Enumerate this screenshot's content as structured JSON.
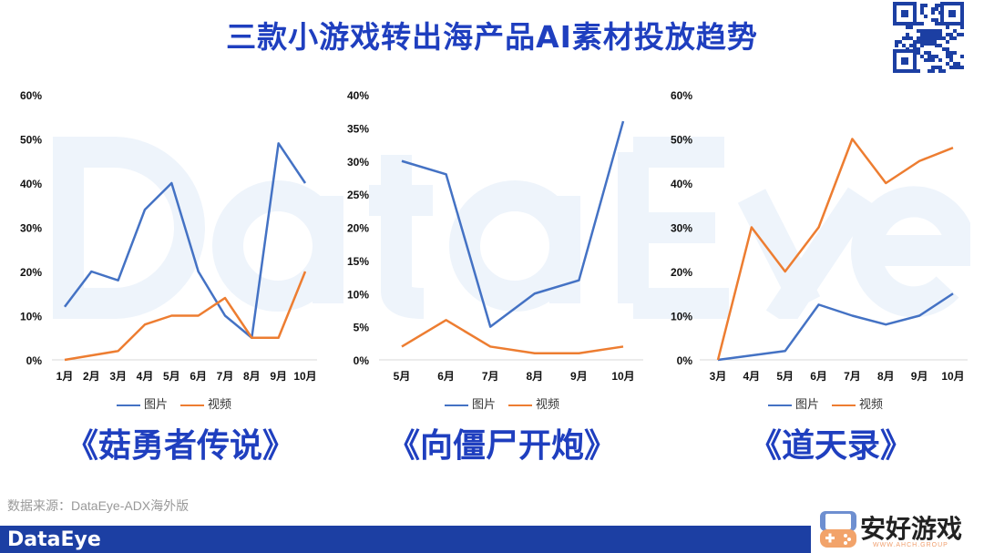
{
  "title": "三款小游戏转出海产品AI素材投放趋势",
  "watermark": "DataEye",
  "colors": {
    "image": "#4472c4",
    "video": "#ed7d31",
    "title": "#1f3fbf",
    "footer": "#1c3fa3"
  },
  "chart_data": [
    {
      "type": "line",
      "game": "《菇勇者传说》",
      "categories": [
        "1月",
        "2月",
        "3月",
        "4月",
        "5月",
        "6月",
        "7月",
        "8月",
        "9月",
        "10月"
      ],
      "yticks": [
        "0%",
        "10%",
        "20%",
        "30%",
        "40%",
        "50%",
        "60%"
      ],
      "ylim": [
        0,
        60
      ],
      "legend_position": "bottom",
      "series": [
        {
          "name": "图片",
          "values": [
            12,
            20,
            18,
            34,
            40,
            20,
            10,
            5,
            49,
            40
          ]
        },
        {
          "name": "视频",
          "values": [
            0,
            1,
            2,
            8,
            10,
            10,
            14,
            5,
            5,
            20
          ]
        }
      ]
    },
    {
      "type": "line",
      "game": "《向僵尸开炮》",
      "categories": [
        "5月",
        "6月",
        "7月",
        "8月",
        "9月",
        "10月"
      ],
      "yticks": [
        "0%",
        "5%",
        "10%",
        "15%",
        "20%",
        "25%",
        "30%",
        "35%",
        "40%"
      ],
      "ylim": [
        0,
        40
      ],
      "legend_position": "bottom",
      "series": [
        {
          "name": "图片",
          "values": [
            30,
            28,
            5,
            10,
            12,
            36
          ]
        },
        {
          "name": "视频",
          "values": [
            2,
            6,
            2,
            1,
            1,
            2
          ]
        }
      ]
    },
    {
      "type": "line",
      "game": "《道天录》",
      "categories": [
        "3月",
        "4月",
        "5月",
        "6月",
        "7月",
        "8月",
        "9月",
        "10月"
      ],
      "yticks": [
        "0%",
        "10%",
        "20%",
        "30%",
        "40%",
        "50%",
        "60%"
      ],
      "ylim": [
        0,
        60
      ],
      "legend_position": "bottom",
      "series": [
        {
          "name": "图片",
          "values": [
            0,
            1,
            2,
            12.5,
            10,
            8,
            10,
            15
          ]
        },
        {
          "name": "视频",
          "values": [
            0,
            30,
            20,
            30,
            50,
            40,
            45,
            48
          ]
        }
      ]
    }
  ],
  "source": "数据来源：DataEye-ADX海外版",
  "footer_logo": "DataEye",
  "brand": {
    "name": "安好游戏",
    "sub": "WWW.AHCH.GROUP"
  }
}
